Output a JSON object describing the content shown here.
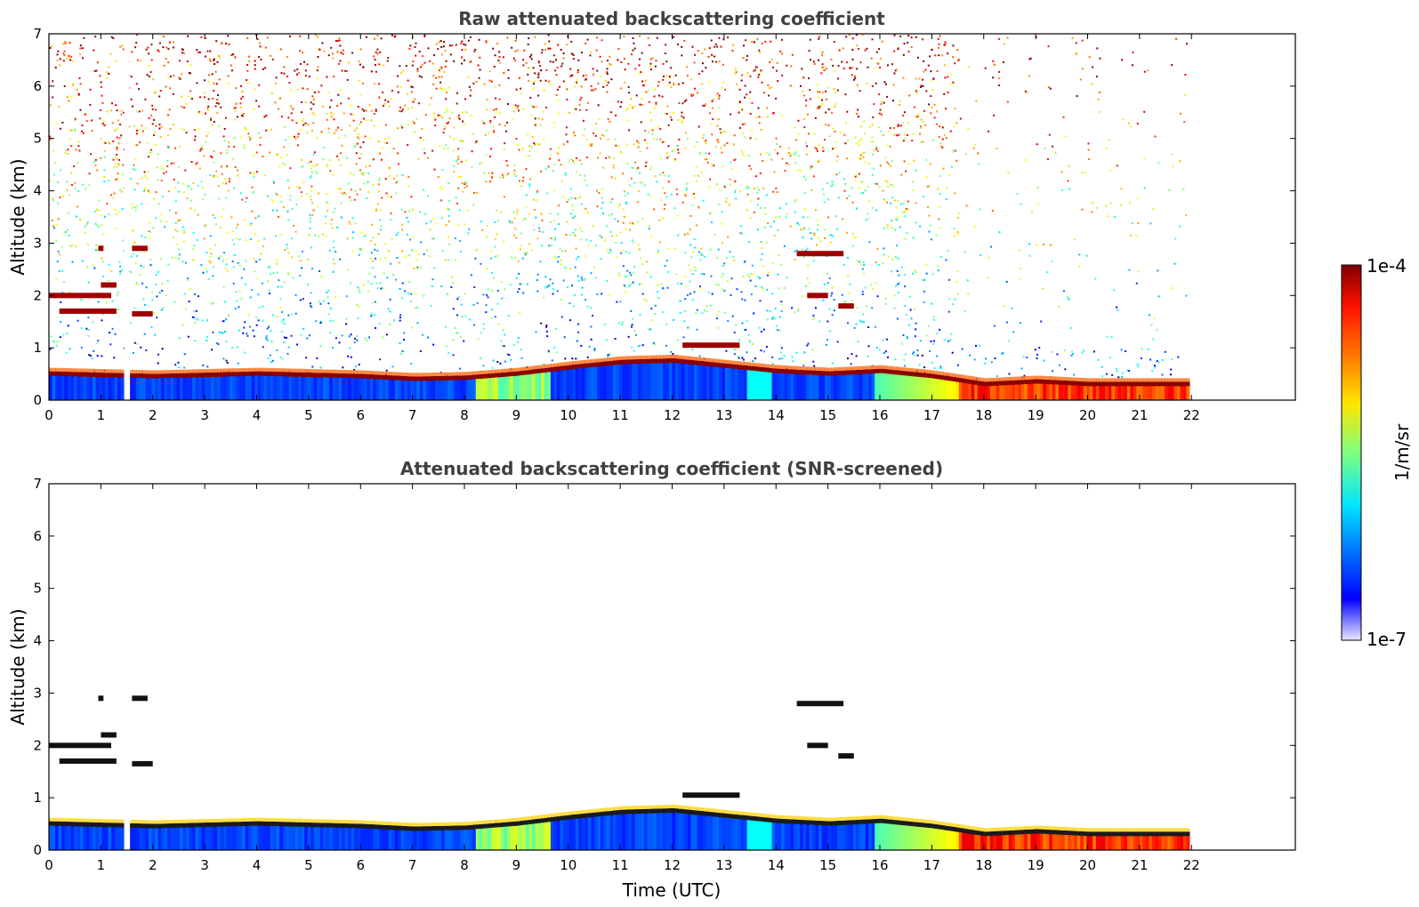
{
  "chart_data": [
    {
      "type": "heatmap",
      "title": "Raw attenuated backscattering coefficient",
      "xlabel": "",
      "ylabel": "Altitude (km)",
      "xlim": [
        0,
        24
      ],
      "ylim": [
        0,
        7
      ],
      "x_ticks": [
        "0",
        "1",
        "2",
        "3",
        "4",
        "5",
        "6",
        "7",
        "8",
        "9",
        "10",
        "11",
        "12",
        "13",
        "14",
        "15",
        "16",
        "17",
        "18",
        "19",
        "20",
        "21",
        "22"
      ],
      "y_ticks": [
        "0",
        "1",
        "2",
        "3",
        "4",
        "5",
        "6",
        "7"
      ],
      "data_end_time": 21.9,
      "gap_time": 1.5,
      "background_noise": "random speckle over whole column, thinning after ~17.5 UTC above 1 km",
      "boundary_layer_top_km": [
        [
          0,
          0.5
        ],
        [
          2,
          0.45
        ],
        [
          4,
          0.5
        ],
        [
          6,
          0.45
        ],
        [
          7,
          0.4
        ],
        [
          8,
          0.42
        ],
        [
          9,
          0.5
        ],
        [
          10,
          0.62
        ],
        [
          11,
          0.72
        ],
        [
          12,
          0.75
        ],
        [
          13,
          0.65
        ],
        [
          14,
          0.55
        ],
        [
          15,
          0.5
        ],
        [
          16,
          0.55
        ],
        [
          17,
          0.45
        ],
        [
          18,
          0.3
        ],
        [
          19,
          0.35
        ],
        [
          20,
          0.3
        ],
        [
          21,
          0.3
        ],
        [
          21.9,
          0.3
        ]
      ],
      "cloud_layers": [
        {
          "t_start": 0.0,
          "t_end": 1.2,
          "alt_km": 2.0
        },
        {
          "t_start": 0.2,
          "t_end": 1.3,
          "alt_km": 1.7
        },
        {
          "t_start": 1.6,
          "t_end": 2.0,
          "alt_km": 1.65
        },
        {
          "t_start": 1.0,
          "t_end": 1.3,
          "alt_km": 2.2
        },
        {
          "t_start": 0.95,
          "t_end": 1.05,
          "alt_km": 2.9
        },
        {
          "t_start": 1.6,
          "t_end": 1.9,
          "alt_km": 2.9
        },
        {
          "t_start": 12.2,
          "t_end": 13.3,
          "alt_km": 1.05
        },
        {
          "t_start": 14.4,
          "t_end": 15.3,
          "alt_km": 2.8
        },
        {
          "t_start": 14.6,
          "t_end": 15.0,
          "alt_km": 2.0
        },
        {
          "t_start": 15.2,
          "t_end": 15.5,
          "alt_km": 1.8
        }
      ],
      "colorbar": {
        "min_label": "1e-7",
        "max_label": "1e-4",
        "label": "1/m/sr"
      }
    },
    {
      "type": "heatmap",
      "title": "Attenuated backscattering coefficient (SNR-screened)",
      "xlabel": "Time (UTC)",
      "ylabel": "Altitude (km)",
      "xlim": [
        0,
        24
      ],
      "ylim": [
        0,
        7
      ],
      "x_ticks": [
        "0",
        "1",
        "2",
        "3",
        "4",
        "5",
        "6",
        "7",
        "8",
        "9",
        "10",
        "11",
        "12",
        "13",
        "14",
        "15",
        "16",
        "17",
        "18",
        "19",
        "20",
        "21",
        "22"
      ],
      "y_ticks": [
        "0",
        "1",
        "2",
        "3",
        "4",
        "5",
        "6",
        "7"
      ],
      "data_end_time": 21.9,
      "gap_time": 1.5,
      "note": "same features as raw plot with noise removed"
    }
  ],
  "colorbar": {
    "min_label": "1e-7",
    "max_label": "1e-4",
    "label": "1/m/sr"
  }
}
